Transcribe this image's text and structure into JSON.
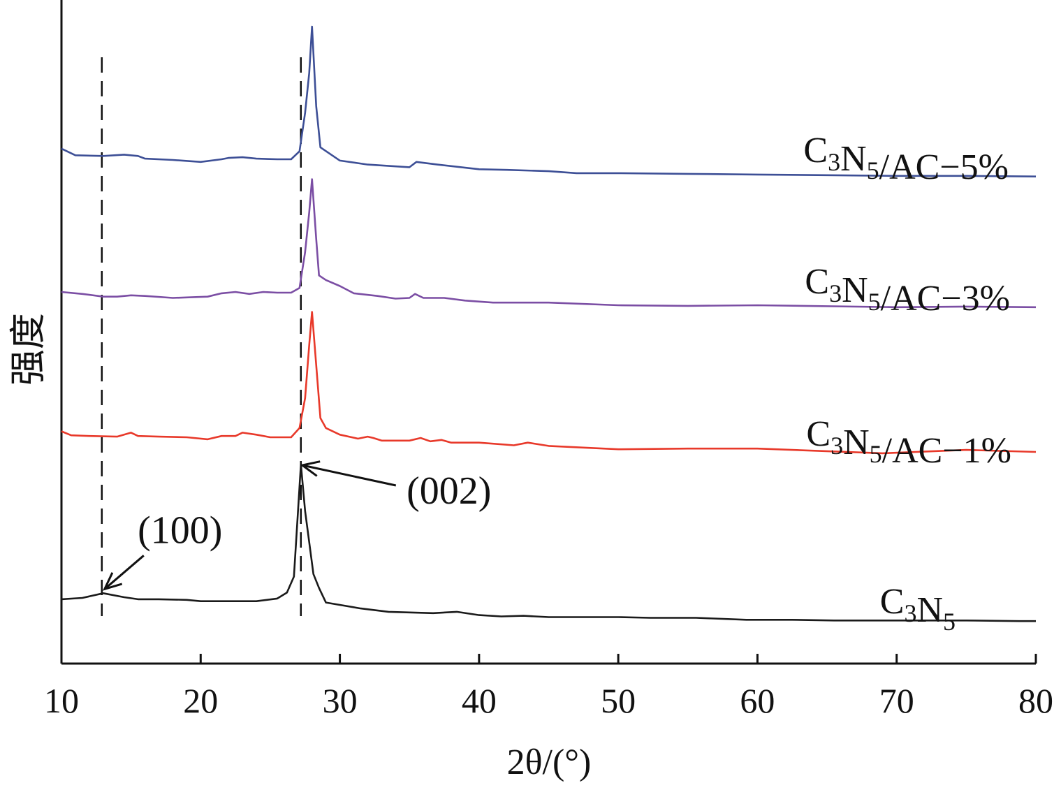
{
  "chart_data": {
    "type": "line",
    "xlabel": "2θ/(°)",
    "ylabel": "强度",
    "xlim": [
      10,
      80
    ],
    "xticks": [
      10,
      20,
      30,
      40,
      50,
      60,
      70,
      80
    ],
    "ylim": [
      0,
      100
    ],
    "grid": false,
    "reference_lines_x": [
      12.9,
      27.2
    ],
    "annotations": [
      {
        "text": "(100)",
        "x": 13.0,
        "y": 10.6
      },
      {
        "text": "(002)",
        "x": 27.2,
        "y": 30.0
      }
    ],
    "series": [
      {
        "label_base": "C",
        "label_sub1": "3",
        "label_mid": "N",
        "label_sub2": "5",
        "label_suffix": "",
        "color": "#1a1a1a",
        "x": [
          10,
          11.5,
          13.0,
          14.5,
          15.5,
          17,
          19,
          20,
          22,
          24,
          25.5,
          26.2,
          26.7,
          27.2,
          27.5,
          28.1,
          28.5,
          29.0,
          31.5,
          33.5,
          36.7,
          38.4,
          40,
          41.6,
          43.2,
          45,
          50,
          52.3,
          54.3,
          55.6,
          59.2,
          62.5,
          65.5,
          68.2,
          72.2,
          75,
          78.8,
          80
        ],
        "y": [
          9.7,
          9.9,
          10.6,
          10.0,
          9.7,
          9.7,
          9.6,
          9.4,
          9.4,
          9.4,
          9.8,
          10.7,
          13.1,
          30.0,
          23.0,
          13.5,
          11.4,
          9.2,
          8.3,
          7.8,
          7.6,
          7.8,
          7.3,
          7.1,
          7.2,
          7.0,
          7.0,
          6.9,
          6.9,
          6.9,
          6.6,
          6.6,
          6.5,
          6.5,
          6.5,
          6.5,
          6.4,
          6.4
        ]
      },
      {
        "label_base": "C",
        "label_sub1": "3",
        "label_mid": "N",
        "label_sub2": "5",
        "label_suffix": "/AC−1%",
        "color": "#e8392a",
        "x": [
          10,
          10.7,
          12,
          14,
          15,
          15.5,
          17,
          19,
          20.5,
          21.5,
          22.5,
          23,
          24,
          25,
          26.5,
          27.1,
          27.5,
          27.8,
          28.0,
          28.3,
          28.6,
          29.0,
          30,
          31.3,
          32.0,
          32.4,
          33,
          35,
          35.8,
          36.5,
          37.3,
          38,
          40,
          42.5,
          43.5,
          45,
          50,
          55,
          60,
          69,
          75,
          80
        ],
        "y": [
          35.0,
          34.4,
          34.3,
          34.2,
          34.8,
          34.3,
          34.2,
          34.1,
          33.8,
          34.3,
          34.3,
          34.8,
          34.5,
          34.1,
          34.1,
          35.5,
          40.0,
          48.0,
          53.0,
          45.0,
          37.0,
          35.5,
          34.5,
          33.9,
          34.2,
          34.0,
          33.6,
          33.6,
          34.0,
          33.5,
          33.7,
          33.3,
          33.3,
          32.9,
          33.3,
          32.8,
          32.3,
          32.4,
          32.4,
          31.7,
          32.2,
          31.9
        ]
      },
      {
        "label_base": "C",
        "label_sub1": "3",
        "label_mid": "N",
        "label_sub2": "5",
        "label_suffix": "/AC−3%",
        "color": "#7b4ea4",
        "x": [
          10,
          11.5,
          13,
          14,
          15,
          16,
          18,
          20.5,
          21.5,
          22.5,
          23.5,
          24.5,
          25.5,
          26.5,
          27.1,
          27.5,
          27.8,
          28.0,
          28.3,
          28.5,
          29.0,
          30,
          31,
          32.7,
          34,
          35,
          35.4,
          36,
          37.5,
          39,
          41,
          45,
          50,
          55,
          60,
          70,
          75,
          80
        ],
        "y": [
          56.0,
          55.7,
          55.3,
          55.3,
          55.5,
          55.4,
          55.1,
          55.3,
          55.8,
          56.0,
          55.7,
          56.0,
          55.9,
          55.9,
          56.6,
          62.0,
          68.0,
          73.0,
          64.0,
          58.5,
          57.8,
          56.9,
          55.8,
          55.4,
          55.0,
          55.1,
          55.7,
          55.1,
          55.1,
          54.7,
          54.4,
          54.4,
          54.0,
          53.9,
          54.0,
          53.7,
          53.8,
          53.7
        ]
      },
      {
        "label_base": "C",
        "label_sub1": "3",
        "label_mid": "N",
        "label_sub2": "5",
        "label_suffix": "/AC−5%",
        "color": "#3d4f96",
        "x": [
          10,
          11,
          13,
          14.5,
          15.5,
          16,
          18,
          20,
          21.5,
          22,
          23,
          24,
          25.5,
          26.5,
          27.1,
          27.5,
          27.8,
          28.0,
          28.3,
          28.6,
          30,
          32,
          35,
          35.5,
          37,
          40,
          42,
          45,
          47,
          50,
          55,
          60,
          65,
          70,
          75,
          80
        ],
        "y": [
          77.6,
          76.6,
          76.5,
          76.7,
          76.5,
          76.1,
          75.9,
          75.6,
          76.0,
          76.2,
          76.3,
          76.1,
          76.0,
          76.0,
          77.2,
          83.0,
          89.0,
          96.0,
          84.0,
          77.8,
          75.8,
          75.2,
          74.8,
          75.6,
          75.2,
          74.5,
          74.4,
          74.2,
          73.9,
          73.9,
          73.8,
          73.7,
          73.6,
          73.5,
          73.5,
          73.4
        ]
      }
    ]
  }
}
